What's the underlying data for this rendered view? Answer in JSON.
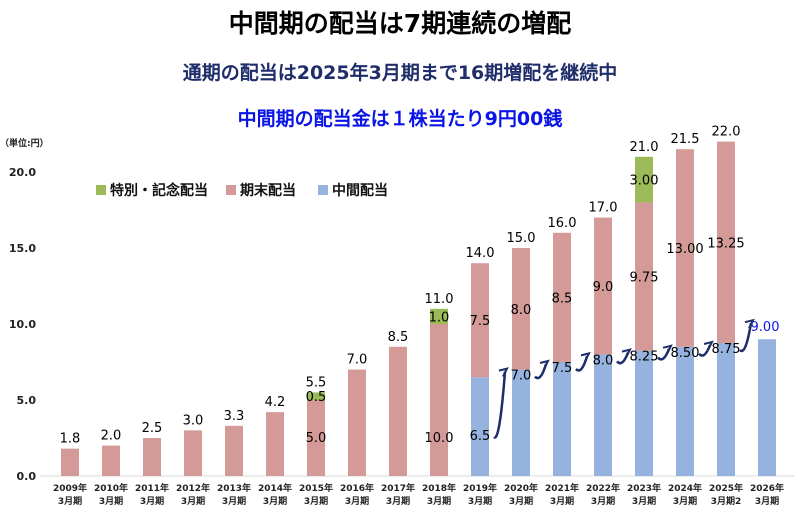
{
  "titles": {
    "main": "中間期の配当は7期連続の増配",
    "sub": "通期の配当は2025年3月期まで16期増配を継続中",
    "sub2": "中間期の配当金は１株当たり9円00銭"
  },
  "chart_data": {
    "type": "bar",
    "stacked": true,
    "unit_label": "（単位:円）",
    "ylim": [
      0,
      20
    ],
    "yticks": [
      "0.0",
      "5.0",
      "10.0",
      "15.0",
      "20.0"
    ],
    "grid": false,
    "legend_placement": "top-left",
    "categories": [
      [
        "2009年",
        "3月期"
      ],
      [
        "2010年",
        "3月期"
      ],
      [
        "2011年",
        "3月期"
      ],
      [
        "2012年",
        "3月期"
      ],
      [
        "2013年",
        "3月期"
      ],
      [
        "2014年",
        "3月期"
      ],
      [
        "2015年",
        "3月期"
      ],
      [
        "2016年",
        "3月期"
      ],
      [
        "2017年",
        "3月期"
      ],
      [
        "2018年",
        "3月期"
      ],
      [
        "2019年",
        "3月期"
      ],
      [
        "2020年",
        "3月期"
      ],
      [
        "2021年",
        "3月期"
      ],
      [
        "2022年",
        "3月期"
      ],
      [
        "2023年",
        "3月期"
      ],
      [
        "2024年",
        "3月期"
      ],
      [
        "2025年",
        "3月期2"
      ],
      [
        "2026年",
        "3月期"
      ]
    ],
    "series": [
      {
        "name": "中間配当",
        "color": "#95b3de",
        "values": [
          0,
          0,
          0,
          0,
          0,
          0,
          0,
          0,
          0,
          0,
          6.5,
          7.0,
          7.5,
          8.0,
          8.25,
          8.5,
          8.75,
          9.0
        ],
        "labels": [
          null,
          null,
          null,
          null,
          null,
          null,
          null,
          null,
          null,
          null,
          "6.5",
          "7.0",
          "7.5",
          "8.0",
          "8.25",
          "8.50",
          "8.75",
          "9.00"
        ]
      },
      {
        "name": "期末配当",
        "color": "#d39a98",
        "values": [
          1.8,
          2.0,
          2.5,
          3.0,
          3.3,
          4.2,
          5.0,
          7.0,
          8.5,
          10.0,
          7.5,
          8.0,
          8.5,
          9.0,
          9.75,
          13.0,
          13.25,
          0
        ],
        "labels": [
          null,
          null,
          null,
          null,
          null,
          null,
          "5.0",
          null,
          null,
          "10.0",
          "7.5",
          "8.0",
          "8.5",
          "9.0",
          "9.75",
          "13.00",
          "13.25",
          null
        ]
      },
      {
        "name": "特別・記念配当",
        "color": "#9bbb59",
        "values": [
          0,
          0,
          0,
          0,
          0,
          0,
          0.5,
          0,
          0,
          1.0,
          0,
          0,
          0,
          0,
          3.0,
          0,
          0,
          0
        ],
        "labels": [
          null,
          null,
          null,
          null,
          null,
          null,
          "0.5",
          null,
          null,
          "1.0",
          null,
          null,
          null,
          null,
          "3.00",
          null,
          null,
          null
        ]
      }
    ],
    "totals": [
      "1.8",
      "2.0",
      "2.5",
      "3.0",
      "3.3",
      "4.2",
      "5.5",
      "7.0",
      "8.5",
      "11.0",
      "14.0",
      "15.0",
      "16.0",
      "17.0",
      "21.0",
      "21.5",
      "22.0",
      null
    ],
    "highlight_color": "#0a14e6"
  }
}
